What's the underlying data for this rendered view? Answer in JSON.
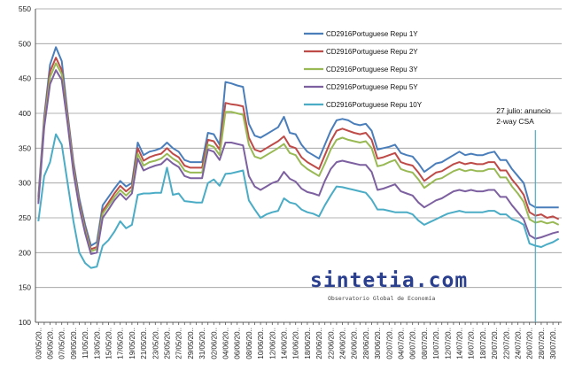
{
  "chart_data": {
    "type": "line",
    "title": "",
    "xlabel": "",
    "ylabel": "",
    "ylim": [
      100,
      550
    ],
    "yticks": [
      100,
      150,
      200,
      250,
      300,
      350,
      400,
      450,
      500,
      550
    ],
    "grid": "horizontal",
    "legend_position": "top-right",
    "x": [
      "03/05/20..",
      "04/05",
      "05/05/20..",
      "06/05",
      "07/05/20..",
      "08/05",
      "09/05/20..",
      "10/05",
      "11/05/20..",
      "12/05",
      "13/05/20..",
      "14/05",
      "15/05/20..",
      "16/05",
      "17/05/20..",
      "18/05",
      "19/05/20..",
      "20/05",
      "21/05/20..",
      "22/05",
      "23/05/20..",
      "24/05",
      "25/05/20..",
      "26/05",
      "27/05/20..",
      "28/05",
      "29/05/20..",
      "30/05",
      "31/05/20..",
      "01/06",
      "02/06/20..",
      "03/06",
      "04/06/20..",
      "05/06",
      "06/06/20..",
      "07/06",
      "08/06/20..",
      "09/06",
      "10/06/20..",
      "11/06",
      "12/06/20..",
      "13/06",
      "14/06/20..",
      "15/06",
      "16/06/20..",
      "17/06",
      "18/06/20..",
      "19/06",
      "20/06/20..",
      "21/06",
      "22/06/20..",
      "23/06",
      "24/06/20..",
      "25/06",
      "26/06/20..",
      "27/06",
      "28/06/20..",
      "29/06",
      "30/06/20..",
      "01/07",
      "02/07/20..",
      "03/07",
      "04/07/20..",
      "05/07",
      "06/07/20..",
      "07/07",
      "08/07/20..",
      "09/07",
      "10/07/20..",
      "11/07",
      "12/07/20..",
      "13/07",
      "14/07/20..",
      "15/07",
      "16/07/20..",
      "17/07",
      "18/07/20..",
      "19/07",
      "20/07/20..",
      "21/07",
      "22/07/20..",
      "23/07",
      "24/07/20..",
      "25/07",
      "26/07/20..",
      "27/07",
      "28/07/20..",
      "29/07",
      "30/07/20..",
      "31/07"
    ],
    "xtick_labels": [
      "03/05/20..",
      "05/05/20..",
      "07/05/20..",
      "09/05/20..",
      "11/05/20..",
      "13/05/20..",
      "15/05/20..",
      "17/05/20..",
      "19/05/20..",
      "21/05/20..",
      "23/05/20..",
      "25/05/20..",
      "27/05/20..",
      "29/05/20..",
      "31/05/20..",
      "02/06/20..",
      "04/06/20..",
      "06/06/20..",
      "08/06/20..",
      "10/06/20..",
      "12/06/20..",
      "14/06/20..",
      "16/06/20..",
      "18/06/20..",
      "20/06/20..",
      "22/06/20..",
      "24/06/20..",
      "26/06/20..",
      "28/06/20..",
      "30/06/20..",
      "02/07/20..",
      "04/07/20..",
      "06/07/20..",
      "08/07/20..",
      "10/07/20..",
      "12/07/20..",
      "14/07/20..",
      "16/07/20..",
      "18/07/20..",
      "20/07/20..",
      "22/07/20..",
      "24/07/20..",
      "26/07/20..",
      "28/07/20..",
      "30/07/20.."
    ],
    "series": [
      {
        "name": "CD2916Portuguese Repu 1Y",
        "color": "#4a7ebb",
        "values": [
          280,
          395,
          470,
          495,
          475,
          400,
          330,
          278,
          240,
          210,
          215,
          268,
          280,
          292,
          303,
          295,
          300,
          358,
          340,
          345,
          347,
          350,
          358,
          350,
          345,
          333,
          330,
          330,
          330,
          372,
          370,
          355,
          445,
          443,
          440,
          438,
          385,
          368,
          365,
          370,
          375,
          380,
          395,
          372,
          370,
          355,
          345,
          340,
          335,
          355,
          375,
          390,
          392,
          390,
          385,
          383,
          385,
          375,
          348,
          350,
          352,
          355,
          343,
          340,
          338,
          328,
          316,
          322,
          328,
          330,
          335,
          340,
          345,
          340,
          342,
          340,
          340,
          343,
          345,
          333,
          333,
          320,
          310,
          300,
          270,
          265,
          265,
          265,
          265,
          265
        ]
      },
      {
        "name": "CD2916Portuguese Repu 2Y",
        "color": "#be4b48",
        "values": [
          276,
          390,
          460,
          480,
          462,
          395,
          325,
          272,
          235,
          205,
          208,
          260,
          272,
          285,
          296,
          288,
          295,
          350,
          332,
          337,
          340,
          342,
          350,
          342,
          337,
          325,
          322,
          322,
          322,
          362,
          360,
          348,
          415,
          413,
          412,
          410,
          365,
          348,
          345,
          350,
          355,
          360,
          367,
          353,
          350,
          337,
          330,
          325,
          320,
          340,
          360,
          375,
          378,
          375,
          372,
          370,
          372,
          362,
          335,
          337,
          340,
          343,
          330,
          327,
          325,
          315,
          303,
          309,
          315,
          317,
          322,
          327,
          330,
          327,
          329,
          327,
          327,
          330,
          330,
          318,
          318,
          305,
          295,
          283,
          258,
          253,
          255,
          250,
          252,
          248
        ]
      },
      {
        "name": "CD2916Portuguese Repu 3Y",
        "color": "#98b954",
        "values": [
          273,
          385,
          452,
          472,
          456,
          390,
          320,
          268,
          232,
          202,
          205,
          256,
          268,
          280,
          290,
          282,
          290,
          342,
          325,
          330,
          332,
          335,
          342,
          335,
          330,
          318,
          315,
          315,
          315,
          355,
          352,
          340,
          402,
          402,
          400,
          398,
          355,
          338,
          335,
          340,
          345,
          350,
          356,
          343,
          340,
          327,
          320,
          315,
          310,
          328,
          348,
          362,
          365,
          362,
          360,
          358,
          360,
          350,
          324,
          326,
          330,
          333,
          320,
          317,
          315,
          305,
          293,
          299,
          305,
          307,
          312,
          317,
          320,
          317,
          319,
          317,
          317,
          320,
          320,
          308,
          308,
          295,
          285,
          273,
          248,
          243,
          245,
          242,
          244,
          240
        ]
      },
      {
        "name": "CD2916Portuguese Repu 5Y",
        "color": "#7d60a0",
        "values": [
          270,
          380,
          442,
          462,
          448,
          385,
          315,
          265,
          228,
          198,
          200,
          250,
          262,
          275,
          285,
          276,
          285,
          335,
          318,
          322,
          325,
          327,
          335,
          328,
          323,
          310,
          307,
          307,
          307,
          348,
          345,
          333,
          358,
          358,
          356,
          354,
          310,
          295,
          290,
          295,
          300,
          303,
          316,
          306,
          302,
          292,
          287,
          285,
          282,
          303,
          320,
          330,
          332,
          330,
          328,
          326,
          326,
          316,
          290,
          292,
          295,
          298,
          288,
          285,
          282,
          272,
          265,
          270,
          275,
          278,
          283,
          288,
          290,
          288,
          290,
          288,
          288,
          290,
          290,
          280,
          280,
          268,
          258,
          248,
          225,
          220,
          222,
          225,
          228,
          230
        ]
      },
      {
        "name": "CD2916Portuguese Repu 10Y",
        "color": "#4bacc6",
        "values": [
          245,
          310,
          330,
          370,
          355,
          300,
          245,
          200,
          185,
          178,
          180,
          210,
          218,
          230,
          245,
          235,
          240,
          283,
          285,
          285,
          286,
          286,
          322,
          283,
          285,
          274,
          273,
          272,
          272,
          300,
          305,
          296,
          313,
          314,
          316,
          318,
          275,
          262,
          250,
          255,
          258,
          260,
          278,
          272,
          270,
          262,
          258,
          256,
          252,
          268,
          282,
          295,
          294,
          292,
          290,
          288,
          286,
          276,
          262,
          262,
          260,
          258,
          258,
          258,
          255,
          246,
          240,
          244,
          248,
          252,
          256,
          258,
          260,
          258,
          258,
          258,
          258,
          260,
          260,
          255,
          255,
          248,
          245,
          240,
          213,
          210,
          208,
          212,
          215,
          220
        ]
      }
    ],
    "annotations": [
      {
        "text_lines": [
          "27 julio: anuncio",
          "2-way CSA"
        ],
        "x": "27/07"
      }
    ]
  },
  "watermark": {
    "brand": "sintetia.com",
    "subtitle": "Observatorio Global de Economía"
  }
}
